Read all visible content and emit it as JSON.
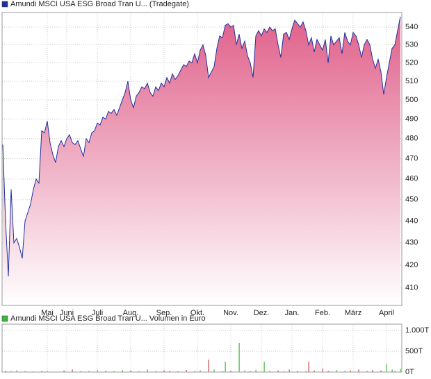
{
  "chart_data": [
    {
      "type": "area",
      "series": [
        {
          "name": "Amundi MSCI USA ESG Broad Tran U... (Tradegate)",
          "color": "#1f2f9f",
          "values": [
            477,
            440,
            415,
            455,
            430,
            432,
            428,
            423,
            440,
            444,
            448,
            455,
            460,
            458,
            484,
            483,
            489,
            478,
            472,
            468,
            476,
            479,
            476,
            480,
            482,
            478,
            477,
            479,
            475,
            471,
            480,
            478,
            483,
            484,
            488,
            487,
            491,
            490,
            494,
            493,
            495,
            492,
            496,
            500,
            504,
            510,
            500,
            496,
            502,
            504,
            507,
            506,
            509,
            504,
            502,
            507,
            505,
            509,
            507,
            512,
            509,
            514,
            511,
            513,
            516,
            519,
            518,
            521,
            520,
            525,
            520,
            527,
            530,
            524,
            512,
            515,
            518,
            528,
            535,
            534,
            541,
            542,
            540,
            541,
            530,
            536,
            528,
            532,
            524,
            520,
            512,
            535,
            538,
            535,
            539,
            537,
            540,
            538,
            539,
            530,
            523,
            536,
            537,
            533,
            539,
            544,
            542,
            540,
            543,
            538,
            530,
            534,
            526,
            533,
            530,
            527,
            533,
            520,
            535,
            530,
            532,
            534,
            525,
            537,
            532,
            530,
            537,
            535,
            530,
            523,
            530,
            533,
            530,
            522,
            517,
            522,
            515,
            503,
            512,
            520,
            528,
            530,
            538,
            546
          ]
        }
      ],
      "fill_color": "#e0608a",
      "log_scale": true,
      "grid": true,
      "ylim": [
        402.5,
        548.4
      ],
      "yticks": [
        410,
        420,
        430,
        440,
        450,
        460,
        470,
        480,
        490,
        500,
        510,
        520,
        530,
        540
      ],
      "xlim": [
        0,
        143
      ],
      "xticks": [
        {
          "value": 16,
          "label": "Mai"
        },
        {
          "value": 23,
          "label": "Juni"
        },
        {
          "value": 34,
          "label": "Juli"
        },
        {
          "value": 46,
          "label": "Aug."
        },
        {
          "value": 58,
          "label": "Sep."
        },
        {
          "value": 70,
          "label": "Okt."
        },
        {
          "value": 82,
          "label": "Nov."
        },
        {
          "value": 93,
          "label": "Dez."
        },
        {
          "value": 104,
          "label": "Jan."
        },
        {
          "value": 115,
          "label": "Feb."
        },
        {
          "value": 126,
          "label": "März"
        },
        {
          "value": 138,
          "label": "April"
        }
      ]
    },
    {
      "type": "bar",
      "series": [
        {
          "name": "Amundi MSCI USA ESG Broad Tran U... Volumen in Euro",
          "color": "#5cb85c",
          "values": [
            0,
            30,
            0,
            20,
            0,
            40,
            0,
            0,
            25,
            0,
            0,
            15,
            0,
            0,
            30,
            0,
            20,
            0,
            0,
            10,
            0,
            0,
            40,
            0,
            0,
            60,
            0,
            0,
            20,
            0,
            0,
            25,
            0,
            0,
            45,
            0,
            0,
            30,
            0,
            0,
            20,
            0,
            0,
            50,
            0,
            0,
            35,
            0,
            0,
            20,
            0,
            0,
            60,
            0,
            0,
            25,
            0,
            0,
            40,
            0,
            30,
            0,
            0,
            20,
            0,
            0,
            50,
            0,
            0,
            25,
            0,
            40,
            0,
            0,
            300,
            0,
            60,
            0,
            0,
            20,
            250,
            0,
            30,
            0,
            0,
            700,
            0,
            40,
            0,
            20,
            0,
            50,
            0,
            0,
            250,
            0,
            30,
            0,
            0,
            40,
            0,
            20,
            0,
            60,
            0,
            0,
            30,
            0,
            0,
            20,
            250,
            0,
            40,
            0,
            0,
            80,
            0,
            30,
            0,
            0,
            50,
            0,
            0,
            30,
            0,
            40,
            0,
            0,
            60,
            0,
            0,
            30,
            0,
            50,
            0,
            0,
            40,
            0,
            200,
            0,
            60,
            30,
            0,
            80
          ]
        }
      ],
      "up_color": "#3cb83c",
      "down_color": "#d04040",
      "grid": true,
      "ylim": [
        0,
        1150
      ],
      "yticks": [
        {
          "value": 0,
          "label": "0T"
        },
        {
          "value": 500,
          "label": "500T"
        },
        {
          "value": 1000,
          "label": "1.000T"
        }
      ],
      "xlim": [
        0,
        143
      ]
    }
  ]
}
